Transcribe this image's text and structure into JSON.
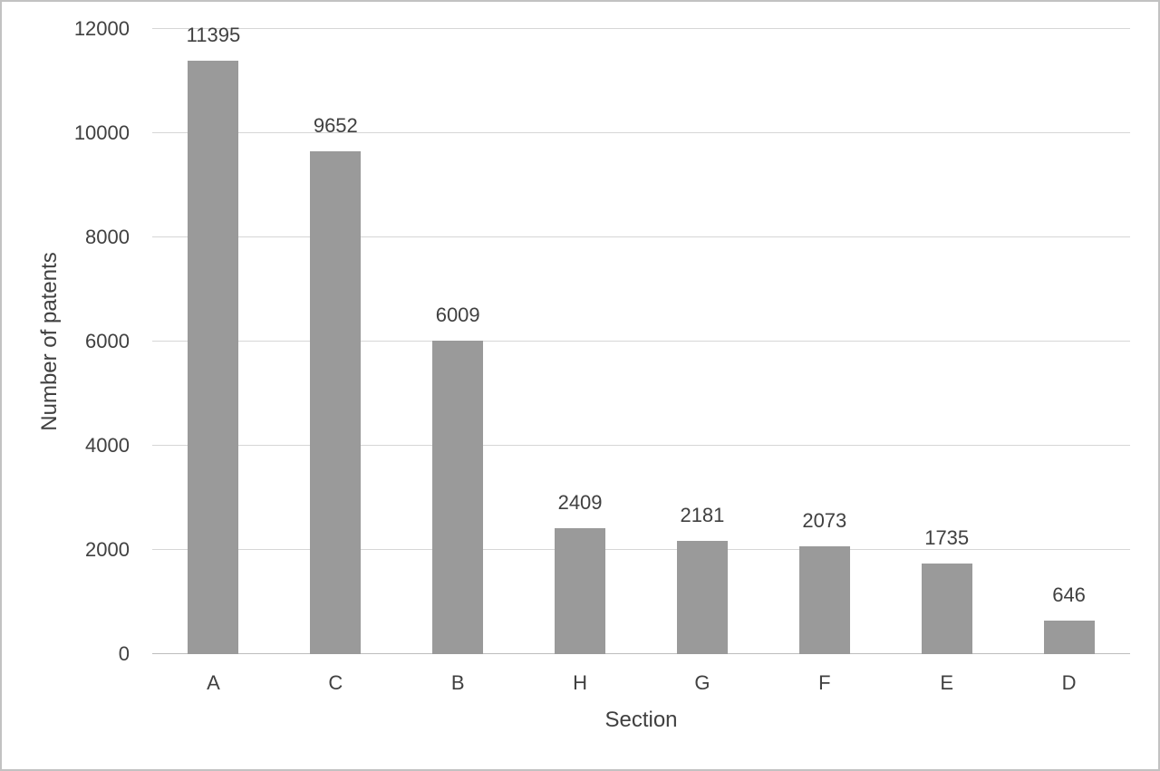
{
  "figure": {
    "border_color": "#c2c2c2",
    "background_color": "#ffffff"
  },
  "chart_data": {
    "type": "bar",
    "title": "",
    "categories": [
      "A",
      "C",
      "B",
      "H",
      "G",
      "F",
      "E",
      "D"
    ],
    "values": [
      11395,
      9652,
      6009,
      2409,
      2181,
      2073,
      1735,
      646
    ],
    "xlabel": "Section",
    "ylabel": "Number of patents",
    "ylim": [
      0,
      12000
    ],
    "yticks": [
      0,
      2000,
      4000,
      6000,
      8000,
      10000,
      12000
    ],
    "grid": "horizontal",
    "legend_position": "none",
    "data_labels": "above-bars",
    "colors": {
      "bar": "#9a9a9a",
      "gridline": "#d6d6d6",
      "axis_line": "#bdbdbd",
      "text": "#404040"
    }
  }
}
